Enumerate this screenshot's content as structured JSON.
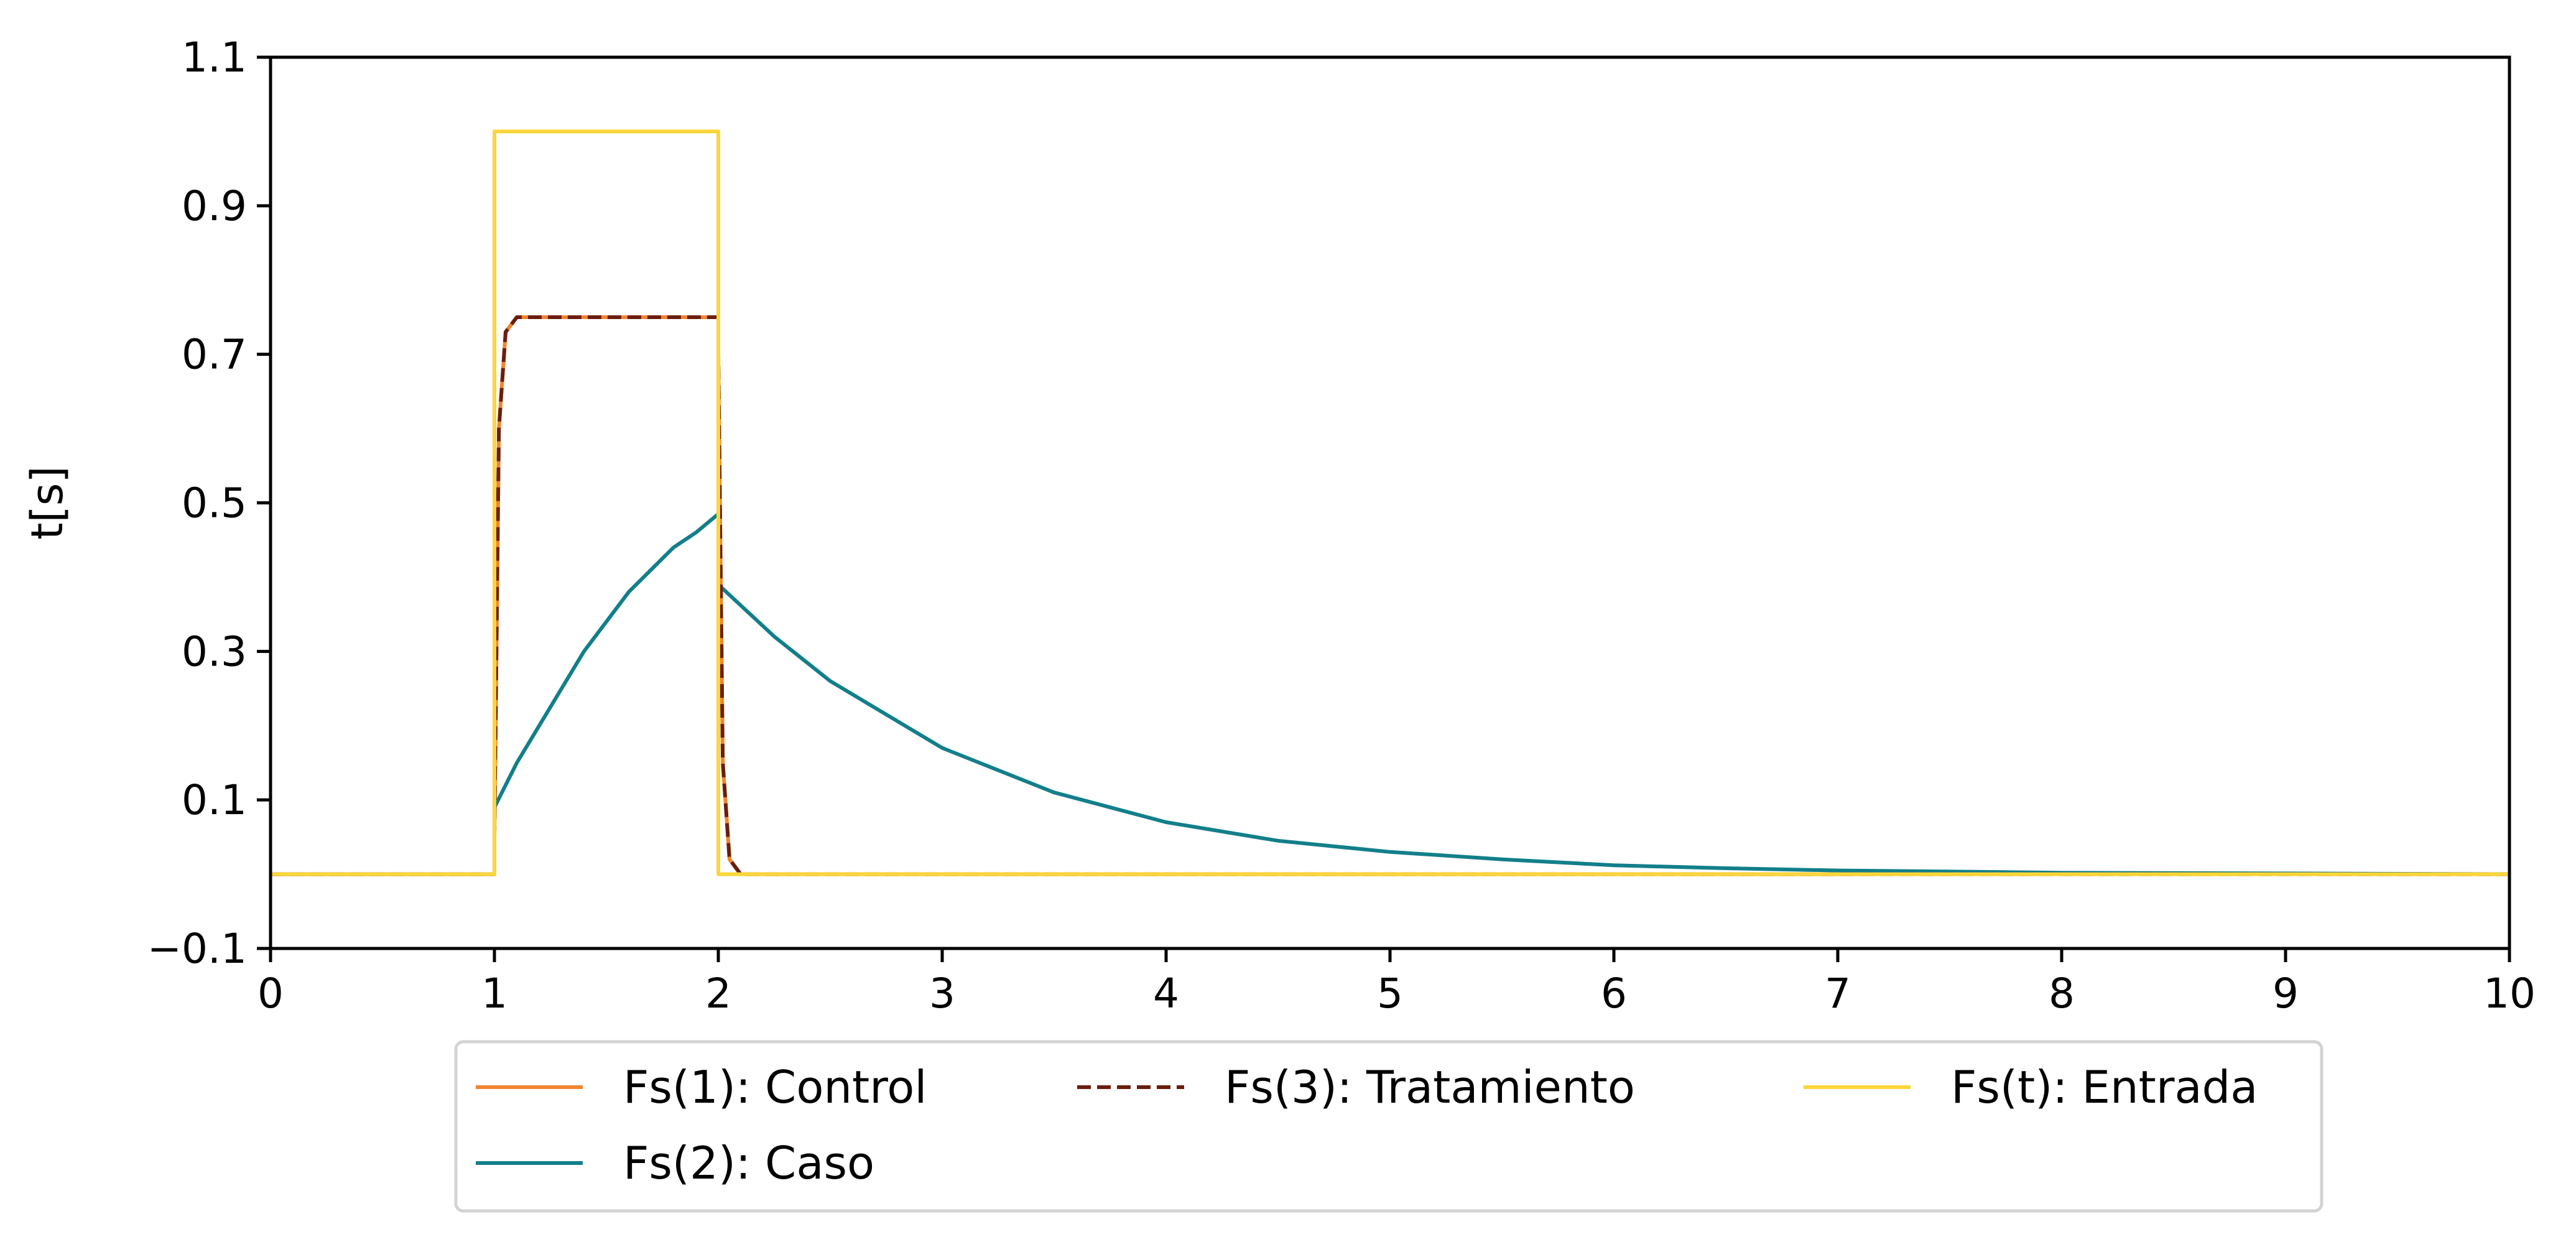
{
  "chart_data": {
    "type": "line",
    "title": "",
    "xlabel": "",
    "ylabel": "t[s]",
    "xlim": [
      0,
      10
    ],
    "ylim": [
      -0.1,
      1.1
    ],
    "x_ticks": [
      "0",
      "1",
      "2",
      "3",
      "4",
      "5",
      "6",
      "7",
      "8",
      "9",
      "10"
    ],
    "y_ticks": [
      "−0.1",
      "0.1",
      "0.3",
      "0.5",
      "0.7",
      "0.9",
      "1.1"
    ],
    "grid": false,
    "legend_position": "bottom-center, below axes",
    "series": [
      {
        "name": "Fs(1): Control",
        "color": "#f28530",
        "style": "solid",
        "points": [
          [
            0,
            0
          ],
          [
            1,
            0
          ],
          [
            1,
            0.05
          ],
          [
            1.02,
            0.6
          ],
          [
            1.05,
            0.73
          ],
          [
            1.1,
            0.75
          ],
          [
            2,
            0.75
          ],
          [
            2,
            0.7
          ],
          [
            2.02,
            0.15
          ],
          [
            2.05,
            0.02
          ],
          [
            2.1,
            0
          ],
          [
            10,
            0
          ]
        ]
      },
      {
        "name": "Fs(2): Caso",
        "color": "#127f8a",
        "style": "solid",
        "points": [
          [
            0,
            0
          ],
          [
            1,
            0
          ],
          [
            1,
            0.09
          ],
          [
            1.1,
            0.15
          ],
          [
            1.2,
            0.2
          ],
          [
            1.3,
            0.25
          ],
          [
            1.4,
            0.3
          ],
          [
            1.5,
            0.34
          ],
          [
            1.6,
            0.38
          ],
          [
            1.7,
            0.41
          ],
          [
            1.8,
            0.44
          ],
          [
            1.9,
            0.46
          ],
          [
            2,
            0.485
          ],
          [
            2,
            0.39
          ],
          [
            2.25,
            0.32
          ],
          [
            2.5,
            0.26
          ],
          [
            3,
            0.17
          ],
          [
            3.5,
            0.11
          ],
          [
            4,
            0.07
          ],
          [
            4.5,
            0.045
          ],
          [
            5,
            0.03
          ],
          [
            5.5,
            0.02
          ],
          [
            6,
            0.012
          ],
          [
            6.5,
            0.008
          ],
          [
            7,
            0.005
          ],
          [
            8,
            0.002
          ],
          [
            9,
            0.001
          ],
          [
            10,
            0
          ]
        ]
      },
      {
        "name": "Fs(3): Tratamiento",
        "color": "#6b1e0c",
        "style": "dashed",
        "points": [
          [
            0,
            0
          ],
          [
            1,
            0
          ],
          [
            1,
            0.05
          ],
          [
            1.02,
            0.6
          ],
          [
            1.05,
            0.73
          ],
          [
            1.1,
            0.75
          ],
          [
            2,
            0.75
          ],
          [
            2,
            0.7
          ],
          [
            2.02,
            0.15
          ],
          [
            2.05,
            0.02
          ],
          [
            2.1,
            0
          ],
          [
            10,
            0
          ]
        ]
      },
      {
        "name": "Fs(t): Entrada",
        "color": "#fcd63a",
        "style": "solid",
        "points": [
          [
            0,
            0
          ],
          [
            1,
            0
          ],
          [
            1,
            1.0
          ],
          [
            2,
            1.0
          ],
          [
            2,
            0
          ],
          [
            10,
            0
          ]
        ]
      }
    ]
  }
}
